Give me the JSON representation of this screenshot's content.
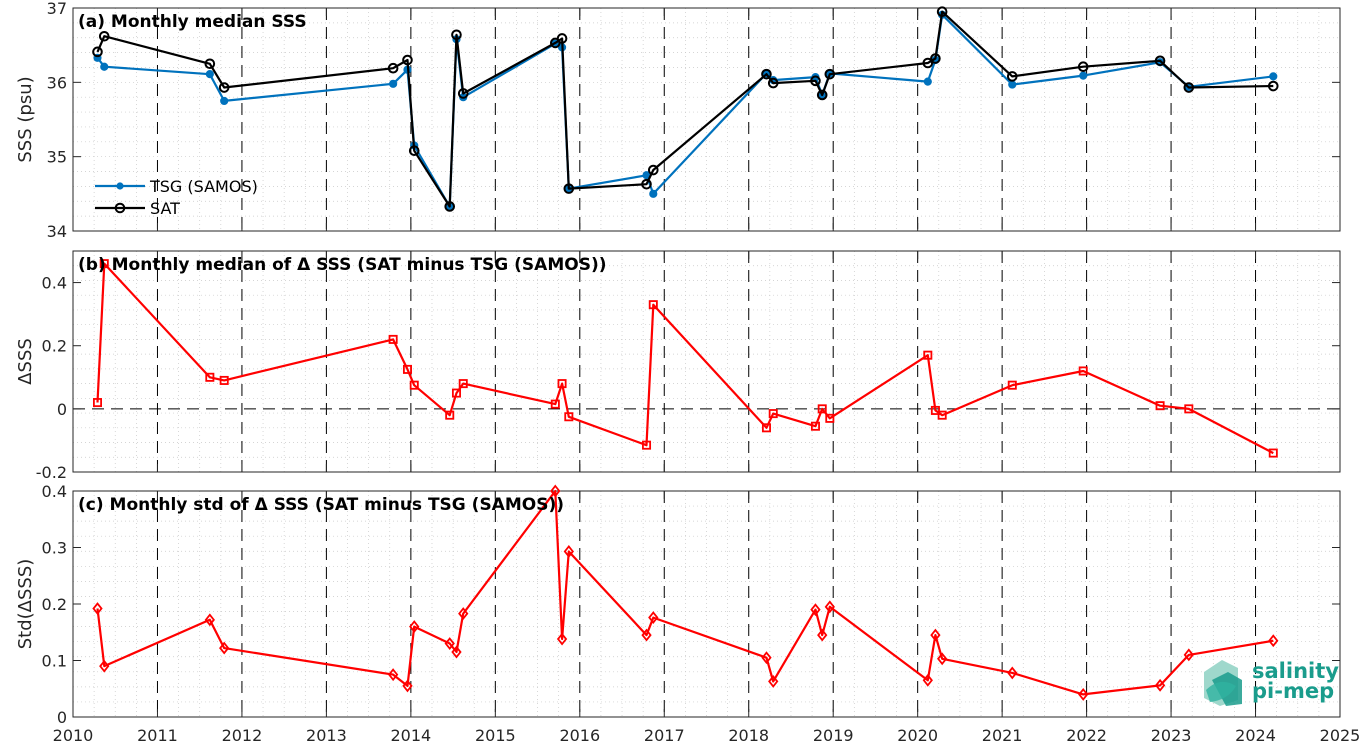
{
  "chart_data": [
    {
      "type": "line",
      "title": "(a) Monthly median SSS",
      "ylabel": "SSS (psu)",
      "ylim": [
        34,
        37
      ],
      "yticks": [
        "34",
        "35",
        "36",
        "37"
      ],
      "series": [
        {
          "name": "TSG (SAMOS)",
          "color": "#0072BD",
          "marker": "filled-dot",
          "x": [
            2010.29,
            2010.37,
            2011.62,
            2011.79,
            2013.79,
            2013.96,
            2014.04,
            2014.46,
            2014.54,
            2014.62,
            2015.71,
            2015.79,
            2015.87,
            2016.79,
            2016.87,
            2018.21,
            2018.29,
            2018.79,
            2018.87,
            2018.96,
            2020.12,
            2020.21,
            2020.29,
            2021.12,
            2021.96,
            2022.87,
            2023.21,
            2024.21
          ],
          "y": [
            36.33,
            36.21,
            36.11,
            35.75,
            35.98,
            36.17,
            35.15,
            34.33,
            36.58,
            35.8,
            36.52,
            36.47,
            34.57,
            34.75,
            34.5,
            36.12,
            36.03,
            36.07,
            35.83,
            36.12,
            36.01,
            36.3,
            36.91,
            35.97,
            36.09,
            36.27,
            35.94,
            36.08
          ]
        },
        {
          "name": "SAT",
          "color": "#000000",
          "marker": "open-circle",
          "x": [
            2010.29,
            2010.37,
            2011.62,
            2011.79,
            2013.79,
            2013.96,
            2014.04,
            2014.46,
            2014.54,
            2014.62,
            2015.71,
            2015.79,
            2015.87,
            2016.79,
            2016.87,
            2018.21,
            2018.29,
            2018.79,
            2018.87,
            2018.96,
            2020.12,
            2020.21,
            2020.29,
            2021.12,
            2021.96,
            2022.87,
            2023.21,
            2024.21
          ],
          "y": [
            36.41,
            36.62,
            36.25,
            35.93,
            36.19,
            36.3,
            35.08,
            34.33,
            36.64,
            35.85,
            36.53,
            36.59,
            34.57,
            34.63,
            34.82,
            36.11,
            35.99,
            36.02,
            35.83,
            36.11,
            36.26,
            36.32,
            36.95,
            36.08,
            36.21,
            36.29,
            35.93,
            35.95
          ]
        }
      ],
      "legend": "lower-left",
      "grid": true
    },
    {
      "type": "line",
      "title": "(b) Monthly median of Δ SSS (SAT minus TSG (SAMOS))",
      "ylabel": "ΔSSS",
      "ylim": [
        -0.2,
        0.5
      ],
      "yticks": [
        "-0.2",
        "0",
        "0.2",
        "0.4"
      ],
      "series": [
        {
          "color": "#FF0000",
          "marker": "open-square",
          "x": [
            2010.29,
            2010.37,
            2011.62,
            2011.79,
            2013.79,
            2013.96,
            2014.04,
            2014.46,
            2014.54,
            2014.62,
            2015.71,
            2015.79,
            2015.87,
            2016.79,
            2016.87,
            2018.21,
            2018.29,
            2018.79,
            2018.87,
            2018.96,
            2020.12,
            2020.21,
            2020.29,
            2021.12,
            2021.96,
            2022.87,
            2023.21,
            2024.21
          ],
          "y": [
            0.02,
            0.46,
            0.1,
            0.09,
            0.22,
            0.125,
            0.075,
            -0.02,
            0.05,
            0.08,
            0.015,
            0.08,
            -0.025,
            -0.115,
            0.33,
            -0.06,
            -0.015,
            -0.055,
            0.0,
            -0.03,
            0.17,
            -0.005,
            -0.02,
            0.075,
            0.12,
            0.01,
            0.0,
            -0.14
          ]
        }
      ],
      "zero_line": true,
      "grid": true
    },
    {
      "type": "line",
      "title": "(c) Monthly std of Δ SSS (SAT minus TSG (SAMOS))",
      "ylabel": "Std(ΔSSS)",
      "ylim": [
        0,
        0.4
      ],
      "yticks": [
        "0",
        "0.1",
        "0.2",
        "0.3",
        "0.4"
      ],
      "series": [
        {
          "color": "#FF0000",
          "marker": "open-diamond",
          "x": [
            2010.29,
            2010.37,
            2011.62,
            2011.79,
            2013.79,
            2013.96,
            2014.04,
            2014.46,
            2014.54,
            2014.62,
            2015.71,
            2015.79,
            2015.87,
            2016.79,
            2016.87,
            2018.21,
            2018.29,
            2018.79,
            2018.87,
            2018.96,
            2020.12,
            2020.21,
            2020.29,
            2021.12,
            2021.96,
            2022.87,
            2023.21,
            2024.21
          ],
          "y": [
            0.192,
            0.09,
            0.172,
            0.122,
            0.075,
            0.055,
            0.16,
            0.13,
            0.115,
            0.183,
            0.4,
            0.138,
            0.293,
            0.145,
            0.176,
            0.105,
            0.063,
            0.19,
            0.145,
            0.195,
            0.065,
            0.145,
            0.103,
            0.078,
            0.04,
            0.056,
            0.11,
            0.135
          ]
        }
      ],
      "grid": true
    }
  ],
  "x_axis": {
    "range": [
      2010,
      2025
    ],
    "ticks": [
      "2010",
      "2011",
      "2012",
      "2013",
      "2014",
      "2015",
      "2016",
      "2017",
      "2018",
      "2019",
      "2020",
      "2021",
      "2022",
      "2023",
      "2024",
      "2025"
    ],
    "year_separators": [
      2011,
      2012,
      2013,
      2014,
      2015,
      2016,
      2017,
      2018,
      2019,
      2020,
      2021,
      2022,
      2023,
      2024
    ]
  },
  "logo": {
    "line1": "salinity",
    "line2": "pi-mep",
    "color": "#1a9c8c"
  }
}
